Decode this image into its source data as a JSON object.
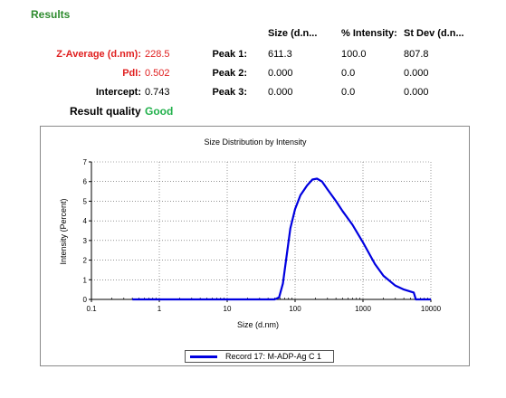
{
  "section_title": "Results",
  "table_headers": [
    "Size (d.n...",
    "% Intensity:",
    "St Dev (d.n..."
  ],
  "summary": [
    {
      "label": "Z-Average (d.nm):",
      "value": "228.5"
    },
    {
      "label": "PdI:",
      "value": "0.502"
    },
    {
      "label": "Intercept:",
      "value": "0.743"
    }
  ],
  "peaks": [
    {
      "label": "Peak 1:",
      "size": "611.3",
      "intensity": "100.0",
      "stdev": "807.8"
    },
    {
      "label": "Peak 2:",
      "size": "0.000",
      "intensity": "0.0",
      "stdev": "0.000"
    },
    {
      "label": "Peak 3:",
      "size": "0.000",
      "intensity": "0.0",
      "stdev": "0.000"
    }
  ],
  "result_quality": {
    "label": "Result quality",
    "value": "Good"
  },
  "colors": {
    "title_green": "#2e8b2e",
    "good_green": "#22b14c",
    "warning_red": "#e02020",
    "series_blue": "#0000e0"
  },
  "chart_data": {
    "type": "line",
    "title": "Size Distribution by Intensity",
    "xlabel": "Size (d.nm)",
    "ylabel": "Intensity (Percent)",
    "x_scale": "log",
    "xlim": [
      0.1,
      10000
    ],
    "ylim": [
      0,
      7
    ],
    "x_ticks": [
      "0.1",
      "1",
      "10",
      "100",
      "1000",
      "10000"
    ],
    "y_ticks": [
      "0",
      "1",
      "2",
      "3",
      "4",
      "5",
      "6",
      "7"
    ],
    "grid": true,
    "legend_position": "bottom",
    "series": [
      {
        "name": "Record 17: M-ADP-Ag C 1",
        "x": [
          0.4,
          1,
          10,
          40,
          50,
          58,
          66,
          75,
          85,
          100,
          120,
          150,
          180,
          210,
          250,
          300,
          400,
          500,
          700,
          1000,
          1500,
          2000,
          3000,
          4000,
          5000,
          5600,
          6000,
          7000,
          10000
        ],
        "y": [
          0,
          0,
          0,
          0,
          0,
          0.1,
          0.8,
          2.2,
          3.6,
          4.6,
          5.3,
          5.8,
          6.1,
          6.15,
          6.0,
          5.6,
          5.0,
          4.5,
          3.8,
          2.9,
          1.8,
          1.2,
          0.7,
          0.5,
          0.4,
          0.35,
          0,
          0,
          0
        ]
      }
    ]
  }
}
